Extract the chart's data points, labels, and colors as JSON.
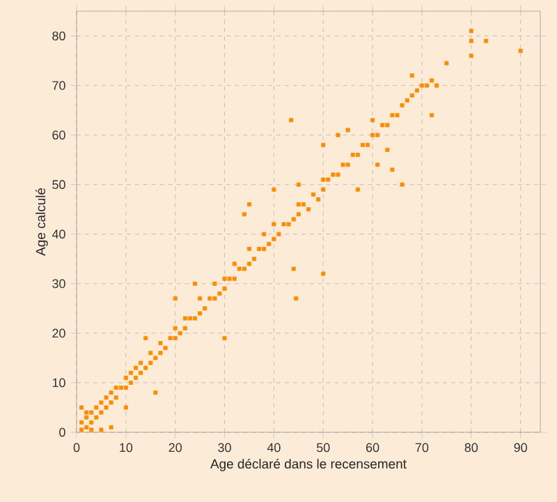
{
  "chart_data": {
    "type": "scatter",
    "xlabel": "Age déclaré dans le recensement",
    "ylabel": "Age calculé",
    "xlim": [
      0,
      94
    ],
    "ylim": [
      0,
      85
    ],
    "xticks": [
      0,
      10,
      20,
      30,
      40,
      50,
      60,
      70,
      80,
      90
    ],
    "yticks": [
      0,
      10,
      20,
      30,
      40,
      50,
      60,
      70,
      80
    ],
    "grid": true,
    "marker": "square",
    "series": [
      {
        "color": "#ff8c00",
        "x": [
          1,
          1,
          2,
          2,
          3,
          3,
          4,
          4,
          5,
          5,
          6,
          6,
          7,
          7,
          8,
          8,
          9,
          10,
          10,
          11,
          11,
          12,
          12,
          13,
          13,
          14,
          15,
          15,
          16,
          17,
          17,
          18,
          19,
          20,
          20,
          21,
          22,
          22,
          23,
          24,
          25,
          25,
          26,
          27,
          28,
          28,
          29,
          30,
          30,
          31,
          32,
          32,
          33,
          34,
          35,
          35,
          36,
          37,
          38,
          38,
          39,
          40,
          40,
          41,
          42,
          43,
          44,
          45,
          45,
          46,
          47,
          48,
          49,
          50,
          50,
          51,
          52,
          53,
          54,
          55,
          56,
          57,
          58,
          59,
          60,
          61,
          62,
          63,
          64,
          65,
          66,
          67,
          68,
          69,
          70,
          71,
          72,
          75,
          1,
          2,
          7,
          10,
          16,
          14,
          20,
          24,
          30,
          35,
          34,
          43.5,
          44.5,
          44,
          50,
          57,
          61,
          63,
          66,
          64,
          68,
          72,
          73,
          80,
          80,
          80,
          83,
          90,
          40,
          45,
          50,
          53,
          55,
          60,
          3,
          5
        ],
        "values": [
          0.5,
          2,
          1,
          3,
          2,
          4,
          3,
          5,
          4,
          6,
          5,
          7,
          6,
          8,
          7,
          9,
          9,
          9,
          11,
          10,
          12,
          11,
          13,
          12,
          14,
          13,
          14,
          16,
          15,
          16,
          18,
          17,
          19,
          19,
          21,
          20,
          21,
          23,
          23,
          23,
          24,
          27,
          25,
          27,
          27,
          30,
          28,
          29,
          31,
          31,
          31,
          34,
          33,
          33,
          34,
          37,
          35,
          37,
          37,
          40,
          38,
          39,
          42,
          40,
          42,
          42,
          43,
          44,
          46,
          46,
          45,
          48,
          47,
          49,
          51,
          51,
          52,
          52,
          54,
          54,
          56,
          56,
          58,
          58,
          60,
          60,
          62,
          62,
          64,
          64,
          66,
          67,
          68,
          69,
          70,
          70,
          71,
          74.5,
          5,
          4,
          1,
          5,
          8,
          19,
          27,
          30,
          19,
          46,
          44,
          63,
          27,
          33,
          32,
          49,
          54,
          57,
          50,
          53,
          72,
          64,
          70,
          76,
          79,
          81,
          79,
          77,
          49,
          50,
          58,
          60,
          61,
          63,
          0.5,
          0.5
        ]
      }
    ]
  }
}
